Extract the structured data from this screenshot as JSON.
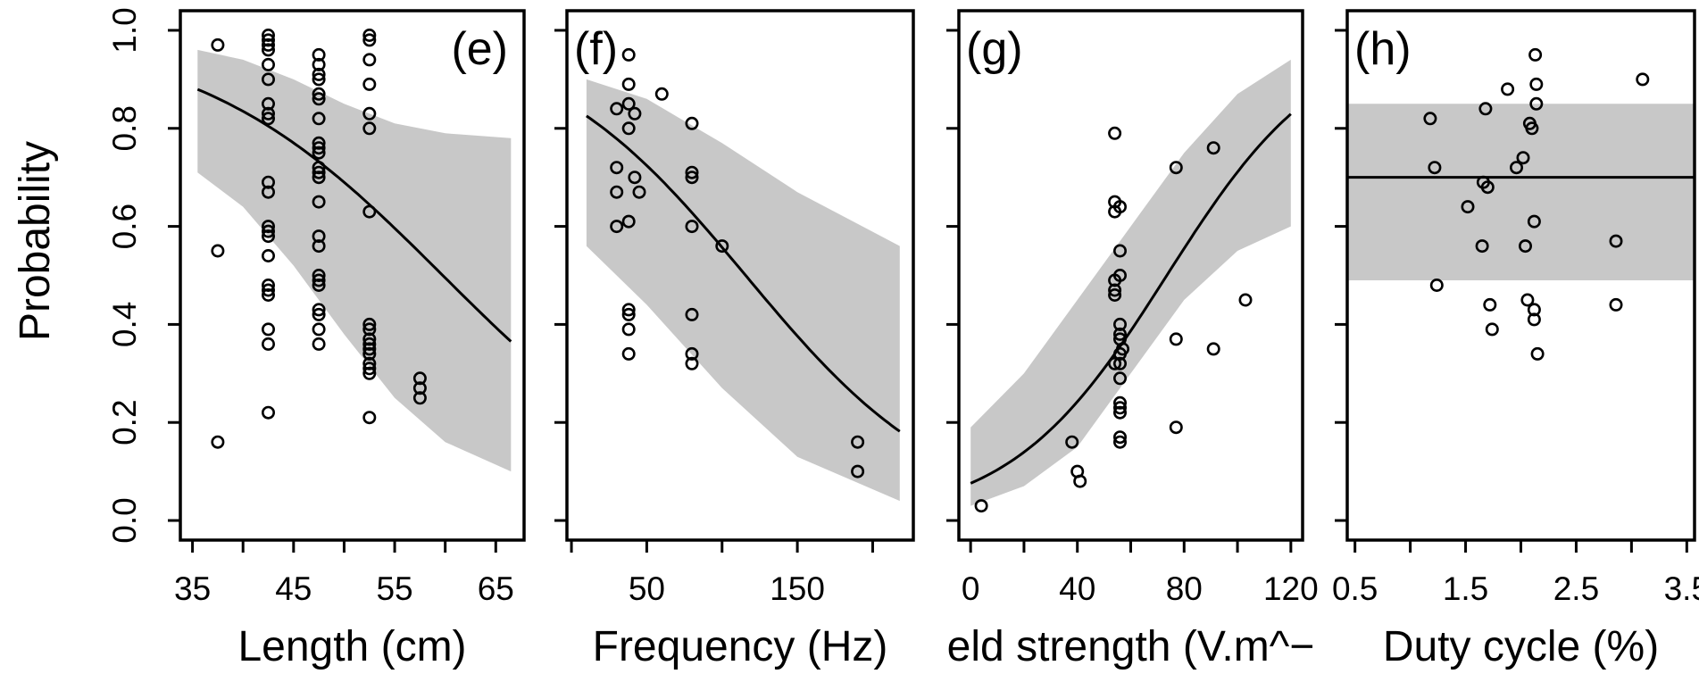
{
  "colors": {
    "band": "#c8c8c8",
    "line": "#000000",
    "points": "#000000"
  },
  "y_axis": {
    "label": "Probability",
    "ticks": [
      0.0,
      0.2,
      0.4,
      0.6,
      0.8,
      1.0
    ],
    "tick_labels": [
      "0.0",
      "0.2",
      "0.4",
      "0.6",
      "0.8",
      "1.0"
    ]
  },
  "chart_data": [
    {
      "type": "scatter",
      "panel": "(e)",
      "xlabel": "Length (cm)",
      "ylabel": "Probability",
      "xlim": [
        33.8,
        67.8
      ],
      "ylim": [
        -0.04,
        1.04
      ],
      "xticks": [
        35,
        40,
        45,
        50,
        55,
        60,
        65
      ],
      "xtick_labels": [
        "35",
        "45",
        "55",
        "65"
      ],
      "xtick_labeled": [
        35,
        45,
        55,
        65
      ],
      "fit": {
        "type": "logistic",
        "x_range": [
          35.5,
          66.5
        ],
        "intercept": 4.9,
        "slope": -0.082
      },
      "band": {
        "x": [
          35.5,
          40,
          45,
          50,
          55,
          60,
          66.5
        ],
        "upper": [
          0.96,
          0.94,
          0.9,
          0.85,
          0.81,
          0.79,
          0.78
        ],
        "lower": [
          0.71,
          0.64,
          0.52,
          0.38,
          0.25,
          0.16,
          0.1
        ]
      },
      "points": {
        "x": [
          37.5,
          37.5,
          37.5,
          42.5,
          42.5,
          42.5,
          42.5,
          42.5,
          42.5,
          42.5,
          42.5,
          42.5,
          42.5,
          42.5,
          42.5,
          42.5,
          42.5,
          42.5,
          42.5,
          42.5,
          42.5,
          42.5,
          42.5,
          42.5,
          47.5,
          47.5,
          47.5,
          47.5,
          47.5,
          47.5,
          47.5,
          47.5,
          47.5,
          47.5,
          47.5,
          47.5,
          47.5,
          47.5,
          47.5,
          47.5,
          47.5,
          47.5,
          47.5,
          47.5,
          47.5,
          47.5,
          47.5,
          52.5,
          52.5,
          52.5,
          52.5,
          52.5,
          52.5,
          52.5,
          52.5,
          52.5,
          52.5,
          52.5,
          52.5,
          52.5,
          52.5,
          52.5,
          52.5,
          52.5,
          57.5,
          57.5,
          57.5
        ],
        "y": [
          0.97,
          0.55,
          0.16,
          0.99,
          0.98,
          0.96,
          0.93,
          0.9,
          0.85,
          0.83,
          0.82,
          0.69,
          0.67,
          0.6,
          0.59,
          0.58,
          0.54,
          0.48,
          0.47,
          0.46,
          0.39,
          0.36,
          0.22,
          0.97,
          0.95,
          0.93,
          0.91,
          0.9,
          0.87,
          0.86,
          0.82,
          0.77,
          0.76,
          0.75,
          0.72,
          0.7,
          0.65,
          0.58,
          0.56,
          0.5,
          0.49,
          0.48,
          0.43,
          0.42,
          0.39,
          0.36,
          0.71,
          0.99,
          0.98,
          0.94,
          0.89,
          0.83,
          0.8,
          0.63,
          0.4,
          0.39,
          0.37,
          0.36,
          0.35,
          0.34,
          0.32,
          0.3,
          0.21,
          0.31,
          0.27,
          0.25,
          0.29
        ],
        "n": 67
      }
    },
    {
      "type": "scatter",
      "panel": "(f)",
      "xlabel": "Frequency (Hz)",
      "ylabel": "",
      "xlim": [
        -3,
        227
      ],
      "ylim": [
        -0.04,
        1.04
      ],
      "xticks": [
        0,
        50,
        100,
        150,
        200
      ],
      "xtick_labels": [
        "50",
        "150"
      ],
      "xtick_labeled": [
        50,
        150
      ],
      "fit": {
        "type": "logistic",
        "x_range": [
          10,
          218
        ],
        "intercept": 1.7,
        "slope": -0.0147
      },
      "band": {
        "x": [
          10,
          50,
          100,
          150,
          218
        ],
        "upper": [
          0.9,
          0.86,
          0.77,
          0.67,
          0.56
        ],
        "lower": [
          0.56,
          0.44,
          0.27,
          0.13,
          0.04
        ]
      },
      "points": {
        "x": [
          30,
          30,
          30,
          30,
          38,
          38,
          38,
          38,
          38,
          38,
          38,
          38,
          38,
          42,
          42,
          45,
          60,
          80,
          80,
          80,
          80,
          80,
          80,
          80,
          100,
          190,
          190
        ],
        "y": [
          0.84,
          0.72,
          0.67,
          0.6,
          0.95,
          0.89,
          0.85,
          0.8,
          0.61,
          0.43,
          0.42,
          0.39,
          0.34,
          0.83,
          0.7,
          0.67,
          0.87,
          0.81,
          0.71,
          0.7,
          0.6,
          0.42,
          0.34,
          0.32,
          0.56,
          0.16,
          0.1
        ],
        "n": 27
      }
    },
    {
      "type": "scatter",
      "panel": "(g)",
      "xlabel": "eld strength (V.m^−",
      "ylabel": "",
      "xlim": [
        -4.4,
        124.4
      ],
      "ylim": [
        -0.04,
        1.04
      ],
      "xticks": [
        0,
        20,
        40,
        60,
        80,
        100,
        120
      ],
      "xtick_labels": [
        "0",
        "40",
        "80",
        "120"
      ],
      "xtick_labeled": [
        0,
        40,
        80,
        120
      ],
      "fit": {
        "type": "logistic",
        "x_range": [
          0,
          120
        ],
        "intercept": -2.5,
        "slope": 0.034
      },
      "band": {
        "x": [
          0,
          20,
          40,
          60,
          80,
          100,
          120
        ],
        "upper": [
          0.19,
          0.3,
          0.45,
          0.6,
          0.75,
          0.87,
          0.94
        ],
        "lower": [
          0.03,
          0.07,
          0.15,
          0.3,
          0.45,
          0.55,
          0.6
        ]
      },
      "points": {
        "x": [
          4,
          38,
          40,
          41,
          54,
          54,
          54,
          54,
          54,
          54,
          54,
          56,
          56,
          56,
          56,
          56,
          56,
          56,
          56,
          56,
          56,
          56,
          56,
          56,
          56,
          57,
          77,
          77,
          77,
          91,
          91,
          103
        ],
        "y": [
          0.03,
          0.16,
          0.1,
          0.08,
          0.79,
          0.65,
          0.63,
          0.49,
          0.47,
          0.46,
          0.32,
          0.64,
          0.55,
          0.4,
          0.38,
          0.37,
          0.34,
          0.29,
          0.24,
          0.23,
          0.22,
          0.17,
          0.16,
          0.5,
          0.32,
          0.35,
          0.72,
          0.37,
          0.19,
          0.76,
          0.35,
          0.45
        ],
        "n": 32
      }
    },
    {
      "type": "scatter",
      "panel": "(h)",
      "xlabel": "Duty cycle (%)",
      "ylabel": "",
      "xlim": [
        0.43,
        3.57
      ],
      "ylim": [
        -0.04,
        1.04
      ],
      "xticks": [
        0.5,
        1.0,
        1.5,
        2.0,
        2.5,
        3.0,
        3.5
      ],
      "xtick_labels": [
        "0.5",
        "1.5",
        "2.5",
        "3.5"
      ],
      "xtick_labeled": [
        0.5,
        1.5,
        2.5,
        3.5
      ],
      "fit": {
        "type": "constant",
        "x_range": [
          0.43,
          3.57
        ],
        "value": 0.7
      },
      "band": {
        "x": [
          0.43,
          3.57
        ],
        "upper": [
          0.85,
          0.85
        ],
        "lower": [
          0.49,
          0.49
        ]
      },
      "points": {
        "x": [
          1.18,
          1.22,
          1.24,
          1.52,
          1.65,
          1.66,
          1.68,
          1.7,
          1.72,
          1.74,
          1.88,
          1.96,
          2.02,
          2.04,
          2.06,
          2.08,
          2.1,
          2.12,
          2.12,
          2.12,
          2.13,
          2.14,
          2.14,
          2.15,
          2.86,
          2.86,
          3.1
        ],
        "y": [
          0.82,
          0.72,
          0.48,
          0.64,
          0.56,
          0.69,
          0.84,
          0.68,
          0.44,
          0.39,
          0.88,
          0.72,
          0.74,
          0.56,
          0.45,
          0.81,
          0.8,
          0.61,
          0.43,
          0.41,
          0.95,
          0.89,
          0.85,
          0.34,
          0.57,
          0.44,
          0.9
        ],
        "n": 27
      }
    }
  ]
}
